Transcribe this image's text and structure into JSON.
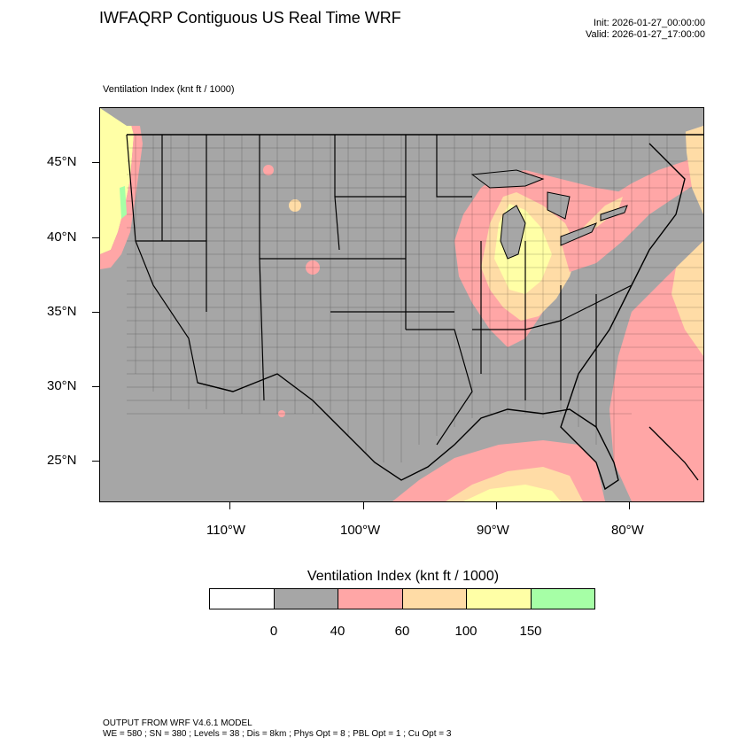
{
  "title": "IWFAQRP Contiguous US Real Time WRF",
  "init": "Init: 2026-01-27_00:00:00",
  "valid": "Valid: 2026-01-27_17:00:00",
  "subtitle": "Ventilation Index   (knt ft / 1000)",
  "map": {
    "latitude_labels": [
      "45°N",
      "40°N",
      "35°N",
      "30°N",
      "25°N"
    ],
    "longitude_labels": [
      "110°W",
      "100°W",
      "90°W",
      "80°W"
    ],
    "background_color": "#a6a6a6",
    "boundary_color": "#000000"
  },
  "colorbar": {
    "title": "Ventilation Index  (knt ft / 1000)",
    "colors": [
      "#ffffff",
      "#a6a6a6",
      "#ffa6a6",
      "#ffdca6",
      "#ffffa6",
      "#a6ffa6"
    ],
    "labels": [
      "0",
      "40",
      "60",
      "100",
      "150"
    ]
  },
  "footer": {
    "line1": "OUTPUT FROM WRF V4.6.1 MODEL",
    "line2": "WE = 580 ; SN = 380 ; Levels = 38 ; Dis = 8km ; Phys Opt = 8 ; PBL Opt = 1 ; Cu Opt = 3"
  }
}
